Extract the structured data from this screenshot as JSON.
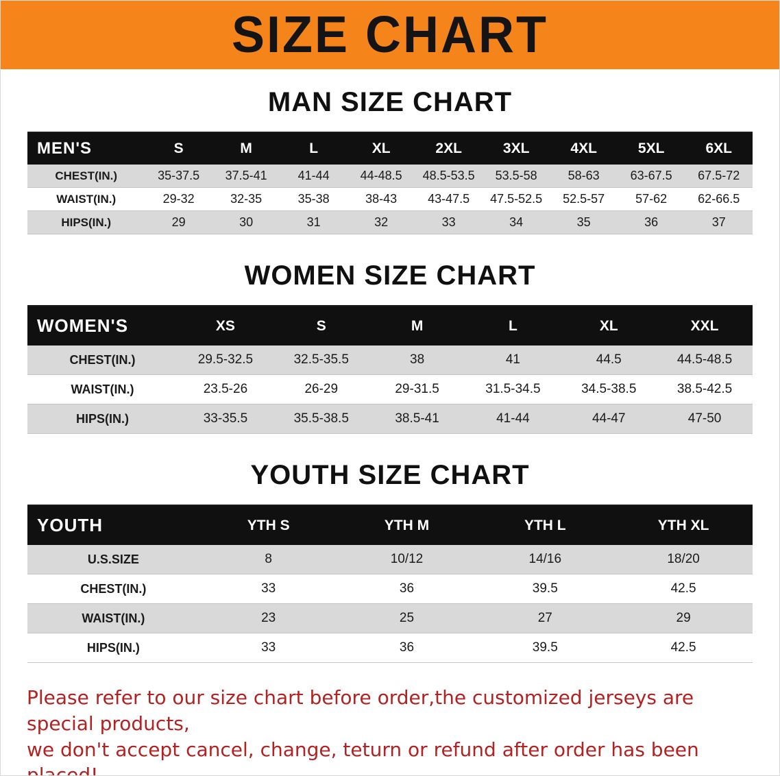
{
  "banner": {
    "title": "SIZE CHART",
    "bg_color": "#F5851A",
    "text_color": "#141414"
  },
  "sections": [
    {
      "heading": "MAN SIZE CHART",
      "table": {
        "header": [
          "MEN'S",
          "S",
          "M",
          "L",
          "XL",
          "2XL",
          "3XL",
          "4XL",
          "5XL",
          "6XL"
        ],
        "rows": [
          [
            "CHEST(IN.)",
            "35-37.5",
            "37.5-41",
            "41-44",
            "44-48.5",
            "48.5-53.5",
            "53.5-58",
            "58-63",
            "63-67.5",
            "67.5-72"
          ],
          [
            "WAIST(IN.)",
            "29-32",
            "32-35",
            "35-38",
            "38-43",
            "43-47.5",
            "47.5-52.5",
            "52.5-57",
            "57-62",
            "62-66.5"
          ],
          [
            "HIPS(IN.)",
            "29",
            "30",
            "31",
            "32",
            "33",
            "34",
            "35",
            "36",
            "37"
          ]
        ]
      }
    },
    {
      "heading": "WOMEN SIZE CHART",
      "table": {
        "header": [
          "WOMEN'S",
          "XS",
          "S",
          "M",
          "L",
          "XL",
          "XXL"
        ],
        "rows": [
          [
            "CHEST(IN.)",
            "29.5-32.5",
            "32.5-35.5",
            "38",
            "41",
            "44.5",
            "44.5-48.5"
          ],
          [
            "WAIST(IN.)",
            "23.5-26",
            "26-29",
            "29-31.5",
            "31.5-34.5",
            "34.5-38.5",
            "38.5-42.5"
          ],
          [
            "HIPS(IN.)",
            "33-35.5",
            "35.5-38.5",
            "38.5-41",
            "41-44",
            "44-47",
            "47-50"
          ]
        ]
      }
    },
    {
      "heading": "YOUTH SIZE CHART",
      "table": {
        "header": [
          "YOUTH",
          "YTH S",
          "YTH M",
          "YTH L",
          "YTH XL"
        ],
        "rows": [
          [
            "U.S.SIZE",
            "8",
            "10/12",
            "14/16",
            "18/20"
          ],
          [
            "CHEST(IN.)",
            "33",
            "36",
            "39.5",
            "42.5"
          ],
          [
            "WAIST(IN.)",
            "23",
            "25",
            "27",
            "29"
          ],
          [
            "HIPS(IN.)",
            "33",
            "36",
            "39.5",
            "42.5"
          ]
        ]
      }
    }
  ],
  "footer": {
    "line1": "Please refer to our size chart before order,the customized jerseys are special products,",
    "line2": "we don't accept cancel, change, teturn or refund after order has been placed!",
    "text_color": "#B22222"
  }
}
